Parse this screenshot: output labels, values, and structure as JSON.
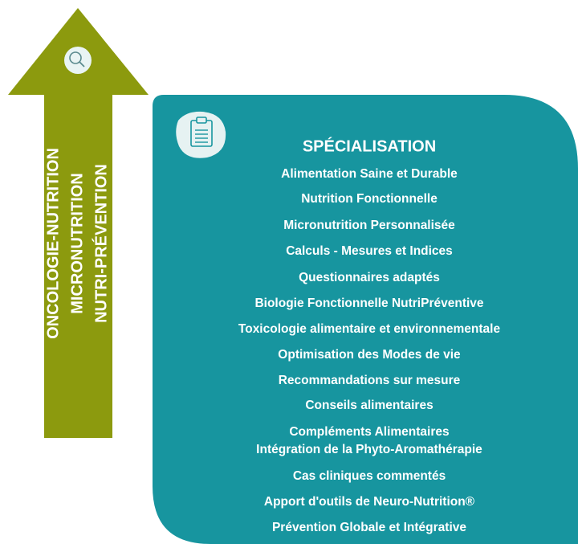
{
  "arrow": {
    "lines": [
      "ONCOLOGIE-NUTRITION",
      "MICRONUTRITION",
      "NUTRI-PRÉVENTION"
    ]
  },
  "panel": {
    "title": "SPÉCIALISATION",
    "items": [
      "Alimentation Saine et Durable",
      "Nutrition Fonctionnelle",
      "Micronutrition Personnalisée",
      "Calculs - Mesures et Indices",
      "Questionnaires adaptés",
      "Biologie Fonctionnelle NutriPréventive",
      "Toxicologie alimentaire et environnementale",
      "Optimisation des Modes de vie",
      "Recommandations sur mesure",
      "Conseils alimentaires",
      "Compléments Alimentaires",
      "Intégration de la Phyto-Aromathérapie",
      "Cas cliniques commentés",
      "Apport d'outils de Neuro-Nutrition®",
      "Prévention Globale et Intégrative"
    ]
  }
}
